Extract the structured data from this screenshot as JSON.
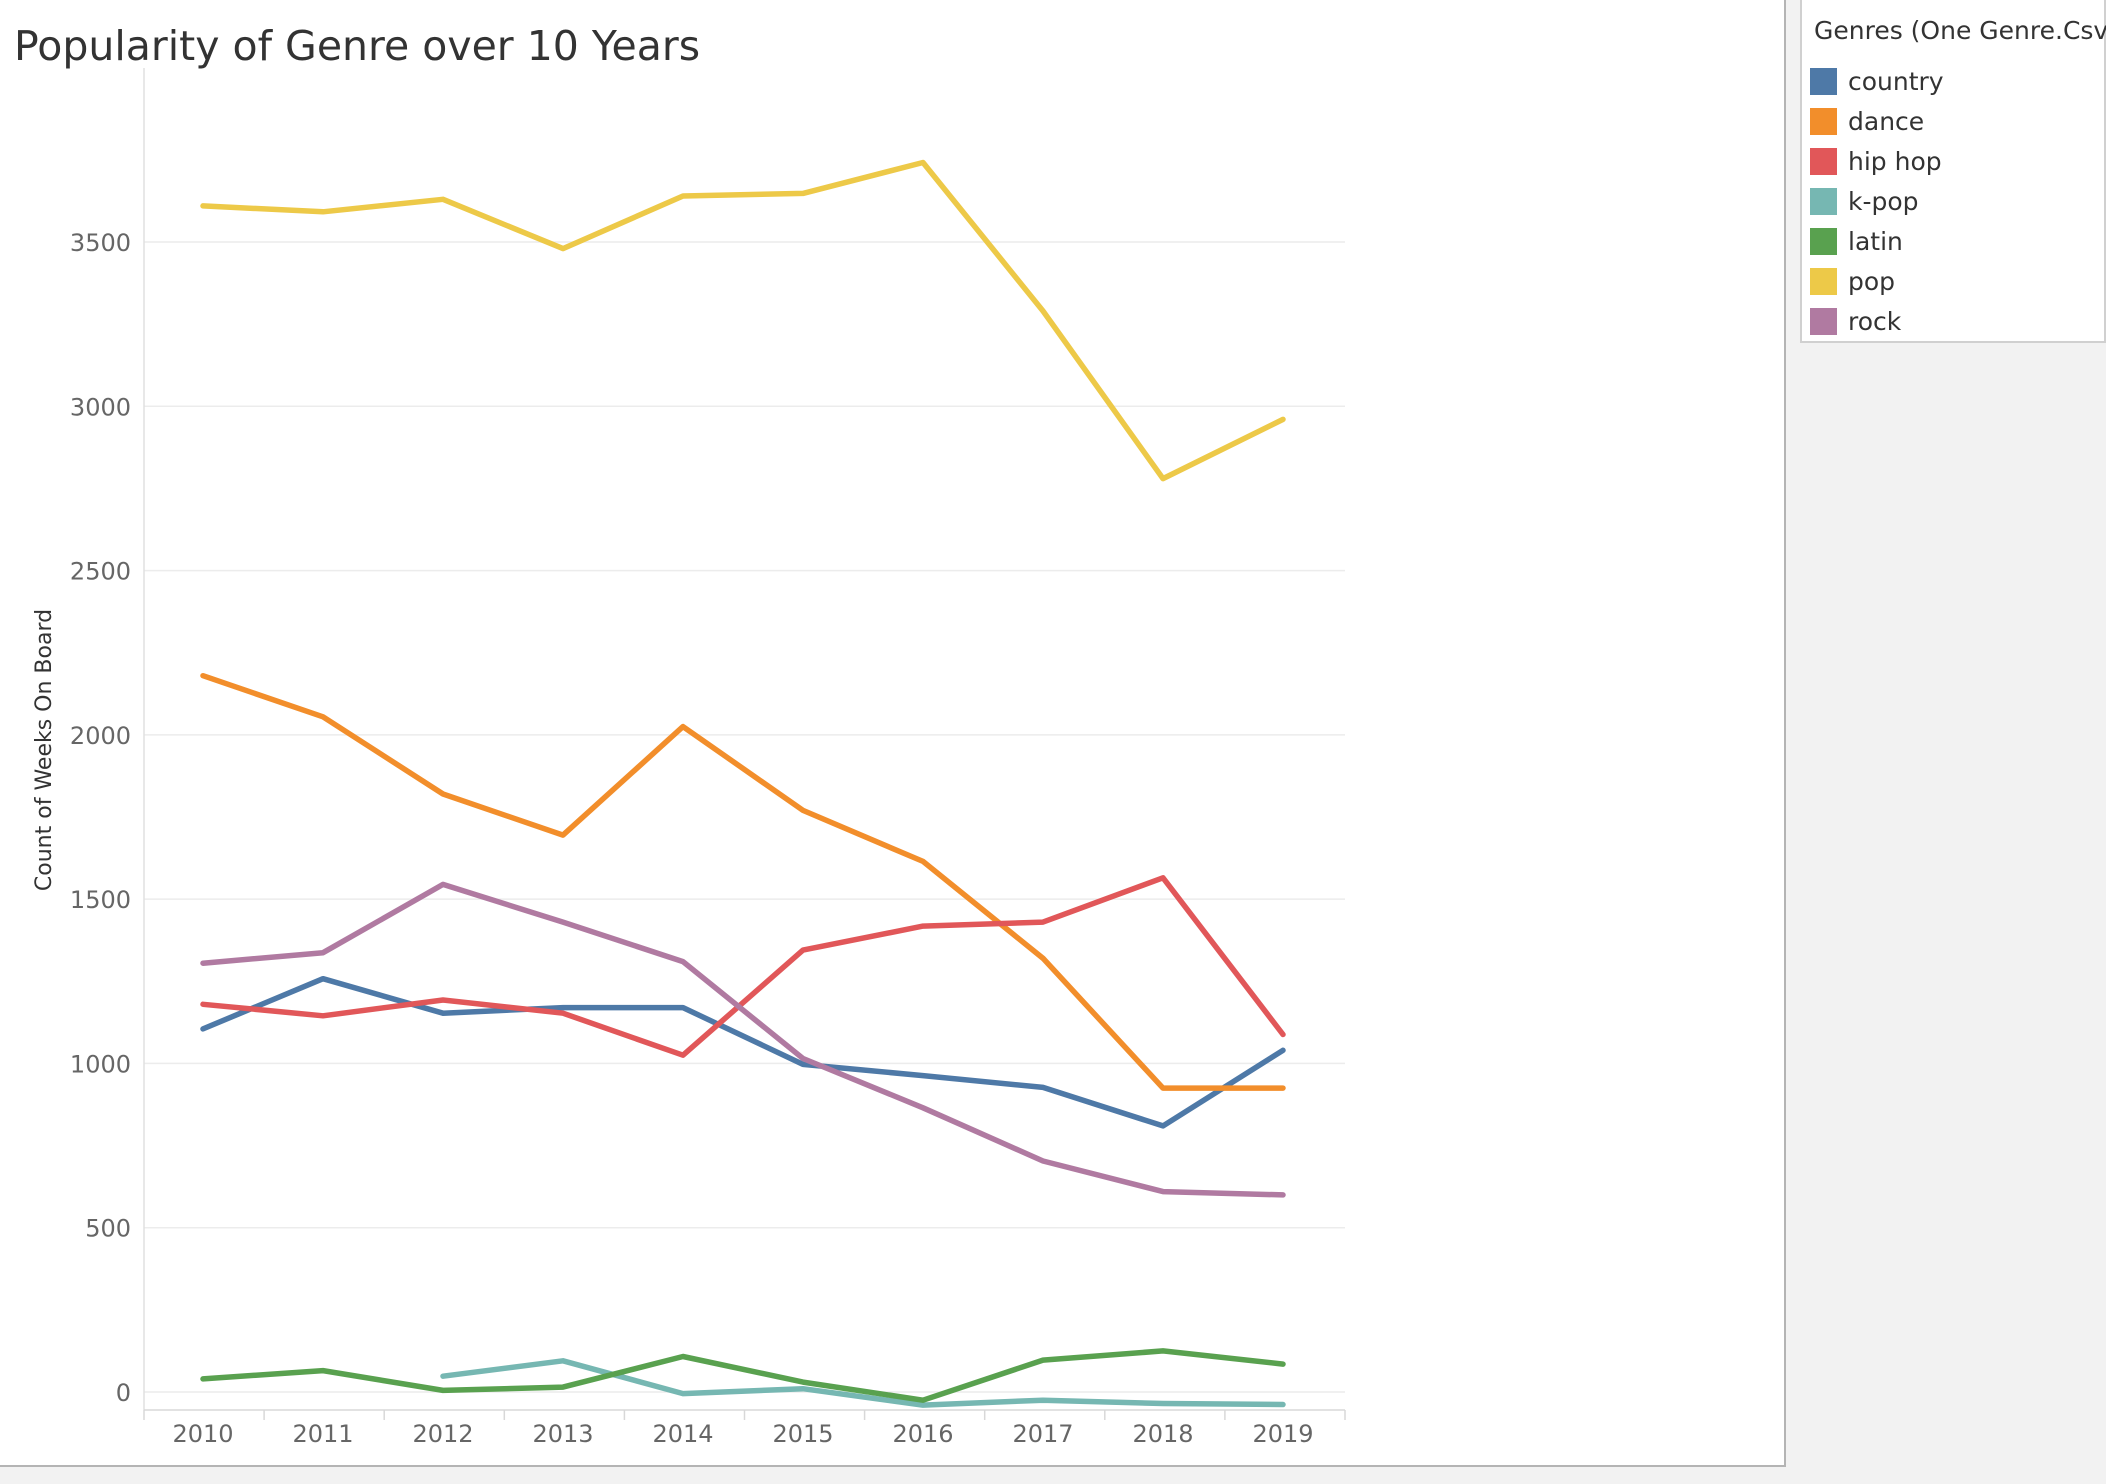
{
  "chart_data": {
    "type": "line",
    "title": "Popularity of Genre over 10 Years",
    "xlabel": "",
    "ylabel": "Count of Weeks On Board",
    "x": [
      2010,
      2011,
      2012,
      2013,
      2014,
      2015,
      2016,
      2017,
      2018,
      2019
    ],
    "ylim": [
      -50,
      3850
    ],
    "yticks": [
      0,
      500,
      1000,
      1500,
      2000,
      2500,
      3000,
      3500
    ],
    "grid": true,
    "legend_title": "Genres (One Genre.Csv)",
    "legend_position": "right",
    "series": [
      {
        "name": "country",
        "color": "#4e79a7",
        "values": [
          1105,
          1258,
          1153,
          1170,
          1170,
          997,
          963,
          927,
          810,
          1040
        ]
      },
      {
        "name": "dance",
        "color": "#f28e2b",
        "values": [
          2180,
          2055,
          1820,
          1695,
          2025,
          1770,
          1615,
          1320,
          925,
          925
        ]
      },
      {
        "name": "hip hop",
        "color": "#e15759",
        "values": [
          1180,
          1145,
          1193,
          1153,
          1025,
          1345,
          1418,
          1430,
          1565,
          1088
        ]
      },
      {
        "name": "k-pop",
        "color": "#76b7b2",
        "values": [
          null,
          null,
          48,
          95,
          -5,
          10,
          -40,
          -25,
          -35,
          -38
        ]
      },
      {
        "name": "latin",
        "color": "#59a14f",
        "values": [
          40,
          65,
          5,
          15,
          108,
          30,
          -25,
          97,
          125,
          85
        ]
      },
      {
        "name": "pop",
        "color": "#edc948",
        "values": [
          3610,
          3592,
          3630,
          3480,
          3640,
          3648,
          3742,
          3290,
          2780,
          2960
        ]
      },
      {
        "name": "rock",
        "color": "#b07aa1",
        "values": [
          1305,
          1337,
          1545,
          1430,
          1310,
          1015,
          865,
          703,
          610,
          600
        ]
      }
    ]
  }
}
